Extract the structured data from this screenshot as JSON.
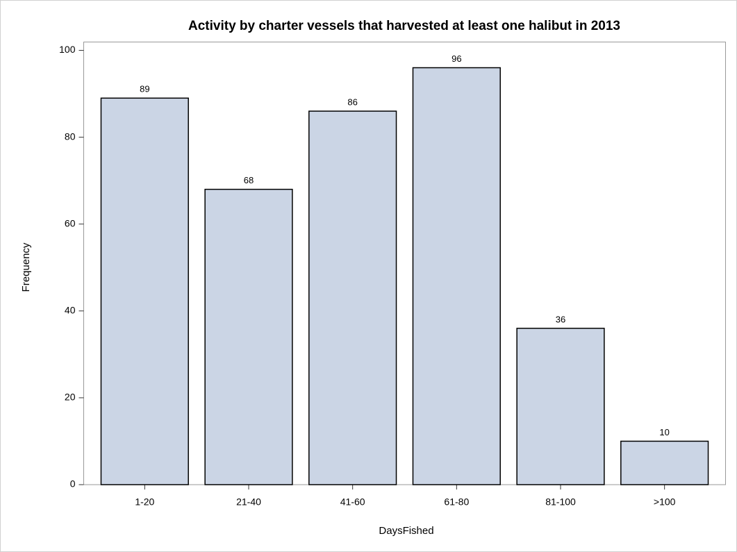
{
  "chart_data": {
    "type": "bar",
    "title": "Activity by charter vessels that harvested at least one halibut in 2013",
    "x_label": "DaysFished",
    "y_label": "Frequency",
    "categories": [
      "1-20",
      "21-40",
      "41-60",
      "61-80",
      "81-100",
      ">100"
    ],
    "values": [
      89,
      68,
      86,
      96,
      36,
      10
    ],
    "color": "#cbd5e5",
    "ylim": [
      0,
      100
    ],
    "yticks": [
      0,
      20,
      40,
      60,
      80,
      100
    ],
    "show_value_labels": true
  }
}
